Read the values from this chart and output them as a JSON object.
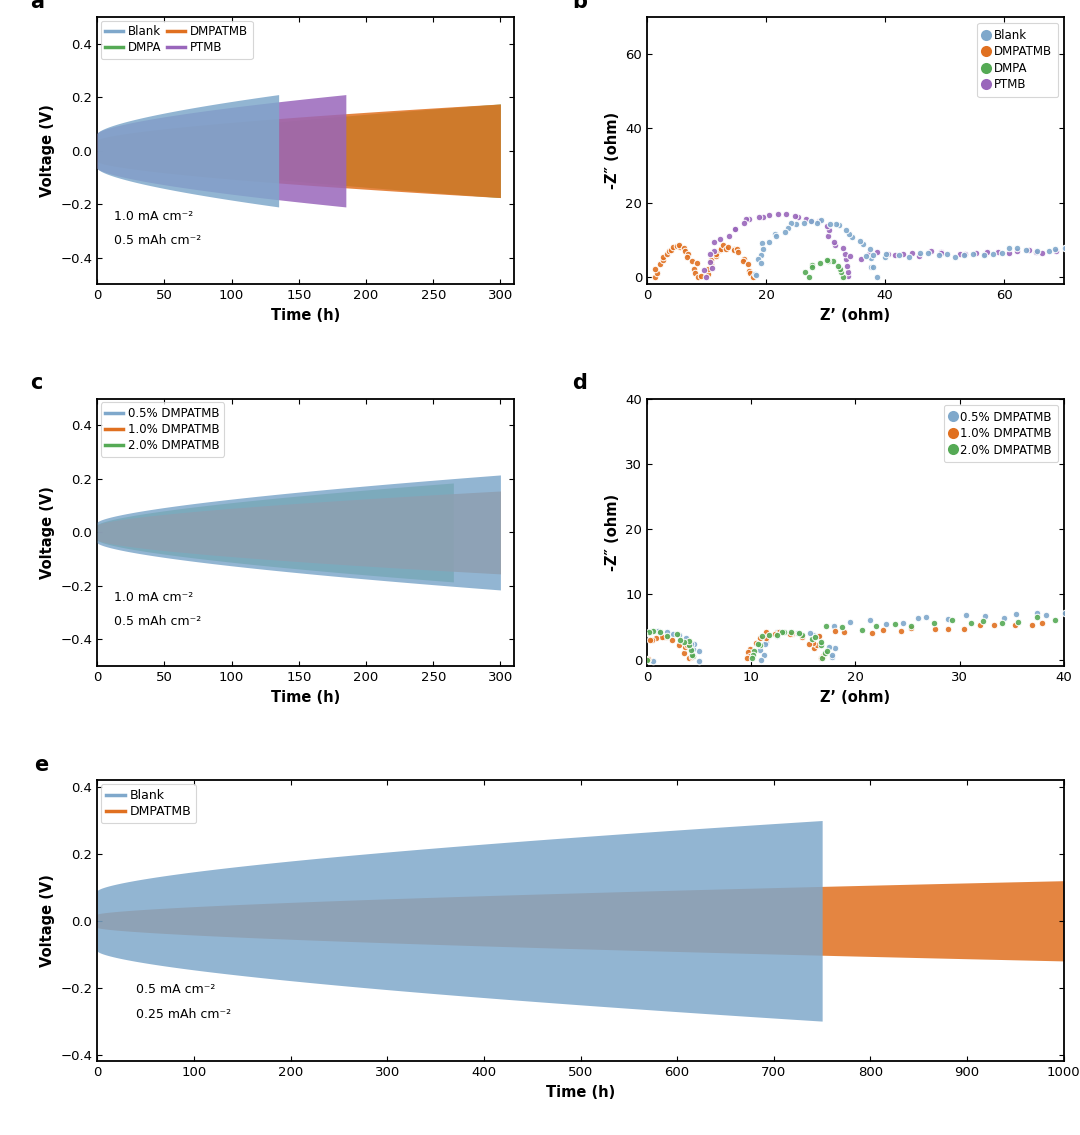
{
  "panel_a": {
    "title": "a",
    "xlabel": "Time (h)",
    "ylabel": "Voltage (V)",
    "xlim": [
      0,
      310
    ],
    "ylim": [
      -0.5,
      0.5
    ],
    "yticks": [
      -0.4,
      -0.2,
      0.0,
      0.2,
      0.4
    ],
    "xticks": [
      0,
      50,
      100,
      150,
      200,
      250,
      300
    ],
    "annotation_line1": "1.0 mA cm⁻²",
    "annotation_line2": "0.5 mAh cm⁻²",
    "series": [
      {
        "name": "Blank",
        "color": "#7fa8cb",
        "end_time": 135,
        "start_amp": 0.065,
        "end_amp": 0.21,
        "zorder": 4
      },
      {
        "name": "PTMB",
        "color": "#9966bb",
        "end_time": 185,
        "start_amp": 0.065,
        "end_amp": 0.21,
        "zorder": 3
      },
      {
        "name": "DMPATMB",
        "color": "#e07020",
        "end_time": 300,
        "start_amp": 0.04,
        "end_amp": 0.175,
        "zorder": 2
      },
      {
        "name": "DMPA",
        "color": "#55aa55",
        "end_time": 300,
        "start_amp": 0.008,
        "end_amp": 0.175,
        "zorder": 1
      }
    ],
    "legend": [
      {
        "label": "Blank",
        "color": "#7fa8cb"
      },
      {
        "label": "DMPA",
        "color": "#55aa55"
      },
      {
        "label": "DMPATMB",
        "color": "#e07020"
      },
      {
        "label": "PTMB",
        "color": "#9966bb"
      }
    ]
  },
  "panel_b": {
    "title": "b",
    "xlabel": "Z’ (ohm)",
    "ylabel": "-Z″ (ohm)",
    "xlim": [
      0,
      70
    ],
    "ylim": [
      -2,
      70
    ],
    "yticks": [
      0,
      20,
      40,
      60
    ],
    "xticks": [
      0,
      20,
      40,
      60
    ],
    "legend": [
      {
        "label": "Blank",
        "color": "#7fa8cb"
      },
      {
        "label": "DMPATMB",
        "color": "#e07020"
      },
      {
        "label": "DMPA",
        "color": "#55aa55"
      },
      {
        "label": "PTMB",
        "color": "#9966bb"
      }
    ]
  },
  "panel_c": {
    "title": "c",
    "xlabel": "Time (h)",
    "ylabel": "Voltage (V)",
    "xlim": [
      0,
      310
    ],
    "ylim": [
      -0.5,
      0.5
    ],
    "yticks": [
      -0.4,
      -0.2,
      0.0,
      0.2,
      0.4
    ],
    "xticks": [
      0,
      50,
      100,
      150,
      200,
      250,
      300
    ],
    "annotation_line1": "1.0 mA cm⁻²",
    "annotation_line2": "0.5 mAh cm⁻²",
    "series": [
      {
        "name": "0.5% DMPATMB",
        "color": "#7fa8cb",
        "end_time": 300,
        "start_amp": 0.038,
        "end_amp": 0.215,
        "zorder": 3
      },
      {
        "name": "1.0% DMPATMB",
        "color": "#e07020",
        "end_time": 300,
        "start_amp": 0.028,
        "end_amp": 0.155,
        "zorder": 2
      },
      {
        "name": "2.0% DMPATMB",
        "color": "#55aa55",
        "end_time": 265,
        "start_amp": 0.028,
        "end_amp": 0.185,
        "zorder": 1
      }
    ],
    "legend": [
      {
        "label": "0.5% DMPATMB",
        "color": "#7fa8cb"
      },
      {
        "label": "1.0% DMPATMB",
        "color": "#e07020"
      },
      {
        "label": "2.0% DMPATMB",
        "color": "#55aa55"
      }
    ]
  },
  "panel_d": {
    "title": "d",
    "xlabel": "Z’ (ohm)",
    "ylabel": "-Z″ (ohm)",
    "xlim": [
      0,
      40
    ],
    "ylim": [
      -1,
      40
    ],
    "yticks": [
      0,
      10,
      20,
      30,
      40
    ],
    "xticks": [
      0,
      10,
      20,
      30,
      40
    ],
    "legend": [
      {
        "label": "0.5% DMPATMB",
        "color": "#7fa8cb"
      },
      {
        "label": "1.0% DMPATMB",
        "color": "#e07020"
      },
      {
        "label": "2.0% DMPATMB",
        "color": "#55aa55"
      }
    ]
  },
  "panel_e": {
    "title": "e",
    "xlabel": "Time (h)",
    "ylabel": "Voltage (V)",
    "xlim": [
      0,
      1000
    ],
    "ylim": [
      -0.42,
      0.42
    ],
    "yticks": [
      -0.4,
      -0.2,
      0.0,
      0.2,
      0.4
    ],
    "xticks": [
      0,
      100,
      200,
      300,
      400,
      500,
      600,
      700,
      800,
      900,
      1000
    ],
    "annotation_line1": "0.5 mA cm⁻²",
    "annotation_line2": "0.25 mAh cm⁻²",
    "series": [
      {
        "name": "Blank",
        "color": "#7fa8cb",
        "end_time": 750,
        "start_amp": 0.09,
        "end_amp": 0.3,
        "zorder": 2
      },
      {
        "name": "DMPATMB",
        "color": "#e07020",
        "end_time": 1000,
        "start_amp": 0.02,
        "end_amp": 0.12,
        "zorder": 1
      }
    ],
    "legend": [
      {
        "label": "Blank",
        "color": "#7fa8cb"
      },
      {
        "label": "DMPATMB",
        "color": "#e07020"
      }
    ]
  }
}
